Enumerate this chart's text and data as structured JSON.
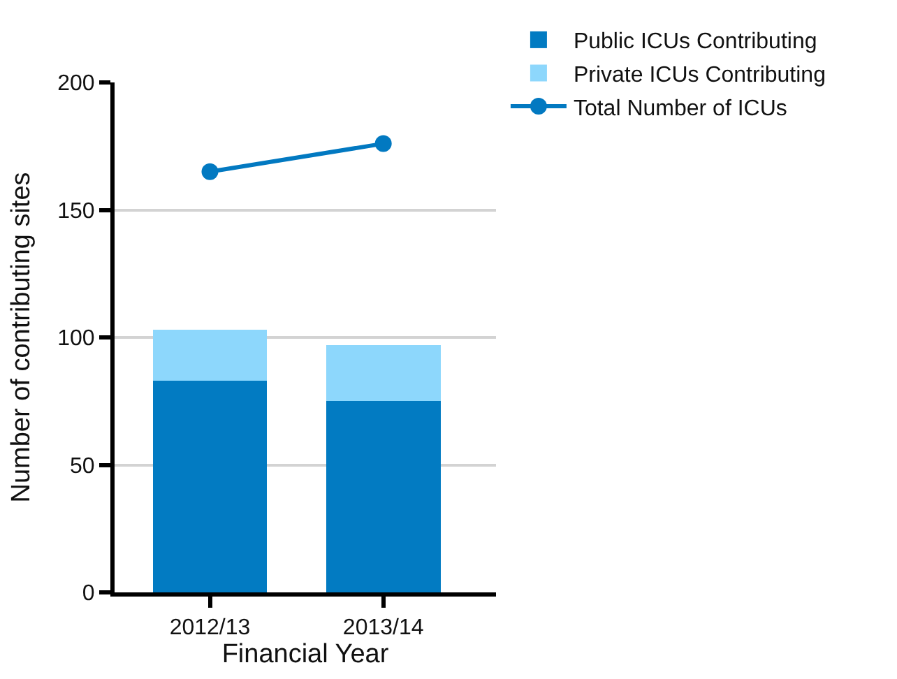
{
  "chart_data": {
    "type": "bar",
    "stacked": true,
    "xlabel": "Financial Year",
    "ylabel": "Number of contributing sites",
    "categories": [
      "2012/13",
      "2013/14"
    ],
    "series": [
      {
        "name": "Total Number of ICUs",
        "type": "line",
        "color": "#0279c1",
        "values": [
          165,
          176
        ],
        "marker": "circle"
      },
      {
        "name": "Private ICUs Contributing",
        "color": "#8dd7fc",
        "values": [
          20,
          22
        ]
      },
      {
        "name": "Public ICUs Contributing",
        "color": "#027bc2",
        "values": [
          83,
          75
        ]
      }
    ],
    "ylim": [
      0,
      200
    ],
    "yticks": [
      0,
      50,
      100,
      150,
      200
    ],
    "grid": "y",
    "legend": "top right"
  }
}
